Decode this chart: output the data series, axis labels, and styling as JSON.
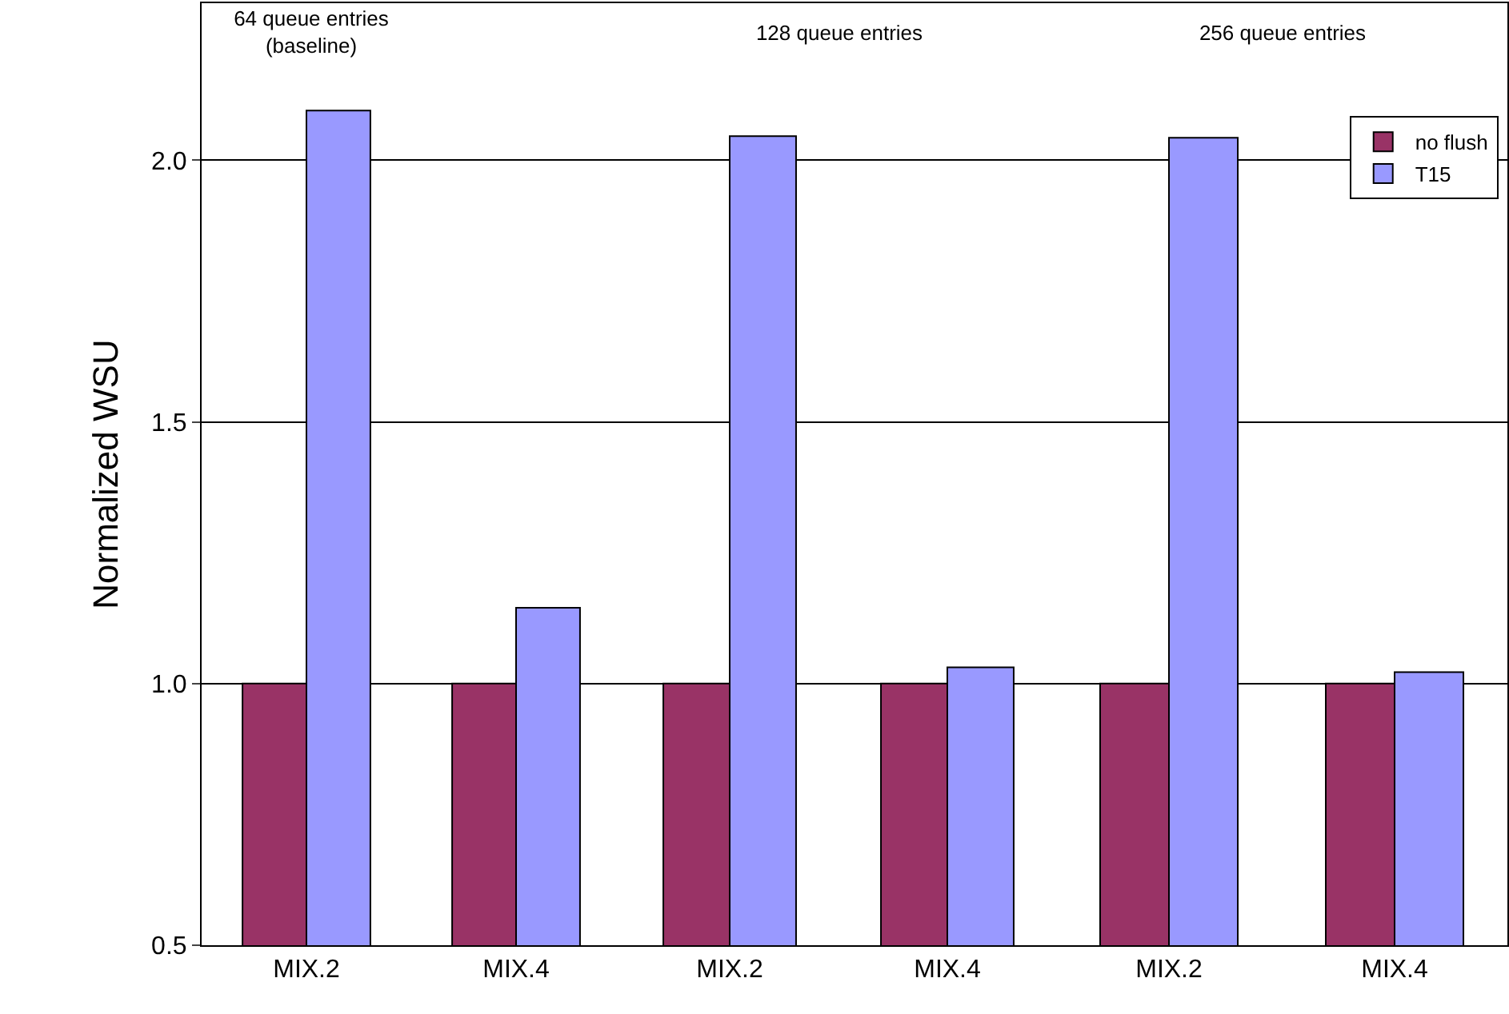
{
  "chart_data": [
    {
      "type": "bar",
      "title": "64 queue entries\n(baseline)",
      "ylabel": "Normalized WSU",
      "categories": [
        "MIX.2",
        "MIX.4"
      ],
      "series": [
        {
          "color": "#993366",
          "values": [
            1.0,
            1.0
          ]
        },
        {
          "color": "#9999ff",
          "values": [
            2.095,
            1.145
          ]
        }
      ],
      "ylim": [
        0.5,
        2.3
      ],
      "yticks": [
        {
          "value": 0.5,
          "label": "0.5"
        },
        {
          "value": 1,
          "label": "1.0"
        },
        {
          "value": 1.5,
          "label": "1.5"
        },
        {
          "value": 2,
          "label": "2.0"
        }
      ],
      "grid": "y"
    },
    {
      "type": "bar",
      "title": "128 queue entries",
      "categories": [
        "MIX.2",
        "MIX.4"
      ],
      "series": [
        {
          "color": "#993366",
          "values": [
            1.0,
            1.0
          ]
        },
        {
          "color": "#9999ff",
          "values": [
            2.046,
            1.031
          ]
        }
      ],
      "ylim": [
        0.5,
        2.3
      ],
      "yticks": [
        {
          "value": 0.5,
          "label": null
        },
        {
          "value": 1,
          "label": null
        },
        {
          "value": 1.5,
          "label": null
        },
        {
          "value": 2,
          "label": null
        }
      ],
      "grid": "y",
      "tick_labels": "x"
    },
    {
      "type": "bar",
      "title": "256 queue entries",
      "categories": [
        "MIX.2",
        "MIX.4"
      ],
      "series": [
        {
          "name": "no flush",
          "color": "#993366",
          "values": [
            1.0,
            1.0
          ]
        },
        {
          "name": "T15",
          "color": "#9999ff",
          "values": [
            2.043,
            1.022
          ]
        }
      ],
      "ylim": [
        0.5,
        2.3
      ],
      "yticks": [
        {
          "value": 0.5,
          "label": null
        },
        {
          "value": 1,
          "label": null
        },
        {
          "value": 1.5,
          "label": null
        },
        {
          "value": 2,
          "label": null
        }
      ],
      "grid": "y",
      "tick_labels": "x",
      "legend": "top right"
    }
  ]
}
